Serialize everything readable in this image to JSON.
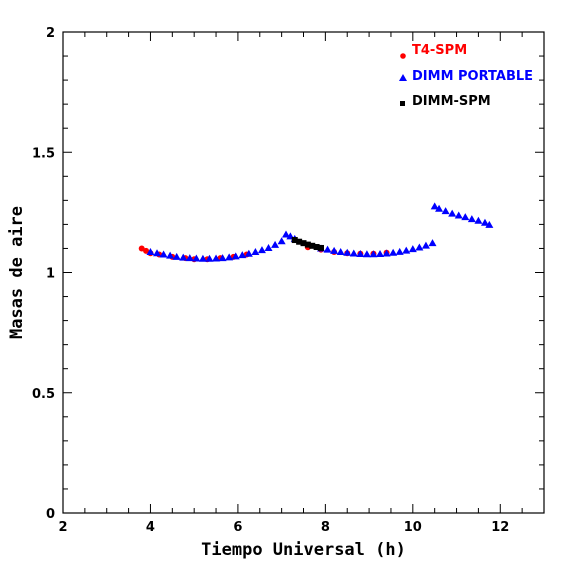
{
  "chart_data": {
    "type": "scatter",
    "title": "",
    "xlabel": "Tiempo Universal (h)",
    "ylabel": "Masas de aire",
    "xlim": [
      2,
      13
    ],
    "ylim": [
      0,
      2
    ],
    "x_ticks": [
      2,
      4,
      6,
      8,
      10,
      12
    ],
    "y_ticks": [
      0,
      0.5,
      1,
      1.5,
      2
    ],
    "x_tick_labels": [
      "2",
      "4",
      "6",
      "8",
      "10",
      "12"
    ],
    "y_tick_labels": [
      "0",
      "0.5",
      "1",
      "1.5",
      "2"
    ],
    "grid": false,
    "legend_placement": "top-right",
    "series": [
      {
        "name": "T4-SPM",
        "color": "#ff0000",
        "marker": "circle",
        "x": [
          3.8,
          3.9,
          4.0,
          4.2,
          4.5,
          4.8,
          5.0,
          5.3,
          5.6,
          5.9,
          6.2,
          7.6,
          7.9,
          8.2,
          8.5,
          8.8,
          9.1,
          9.4
        ],
        "y": [
          1.1,
          1.09,
          1.08,
          1.075,
          1.065,
          1.06,
          1.055,
          1.055,
          1.06,
          1.065,
          1.075,
          1.105,
          1.095,
          1.085,
          1.08,
          1.078,
          1.078,
          1.082
        ]
      },
      {
        "name": "DIMM PORTABLE",
        "color": "#0000ff",
        "marker": "triangle",
        "x": [
          4.0,
          4.15,
          4.3,
          4.45,
          4.6,
          4.75,
          4.9,
          5.05,
          5.2,
          5.35,
          5.5,
          5.65,
          5.8,
          5.95,
          6.1,
          6.25,
          6.4,
          6.55,
          6.7,
          6.85,
          7.0,
          7.1,
          7.2,
          7.3,
          7.9,
          8.05,
          8.2,
          8.35,
          8.5,
          8.65,
          8.8,
          8.95,
          9.1,
          9.25,
          9.4,
          9.55,
          9.7,
          9.85,
          10.0,
          10.15,
          10.3,
          10.45,
          10.5,
          10.6,
          10.75,
          10.9,
          11.05,
          11.2,
          11.35,
          11.5,
          11.65,
          11.75
        ],
        "y": [
          1.085,
          1.08,
          1.075,
          1.07,
          1.065,
          1.062,
          1.06,
          1.058,
          1.057,
          1.057,
          1.058,
          1.06,
          1.063,
          1.067,
          1.072,
          1.078,
          1.085,
          1.093,
          1.102,
          1.115,
          1.13,
          1.158,
          1.15,
          1.14,
          1.1,
          1.095,
          1.09,
          1.085,
          1.082,
          1.079,
          1.077,
          1.076,
          1.076,
          1.077,
          1.079,
          1.082,
          1.086,
          1.091,
          1.097,
          1.104,
          1.112,
          1.122,
          1.275,
          1.265,
          1.255,
          1.245,
          1.237,
          1.23,
          1.222,
          1.215,
          1.207,
          1.198
        ]
      },
      {
        "name": "DIMM-SPM",
        "color": "#000000",
        "marker": "square",
        "x": [
          7.3,
          7.4,
          7.5,
          7.6,
          7.7,
          7.8,
          7.9
        ],
        "y": [
          1.135,
          1.128,
          1.122,
          1.116,
          1.111,
          1.106,
          1.102
        ]
      }
    ]
  }
}
